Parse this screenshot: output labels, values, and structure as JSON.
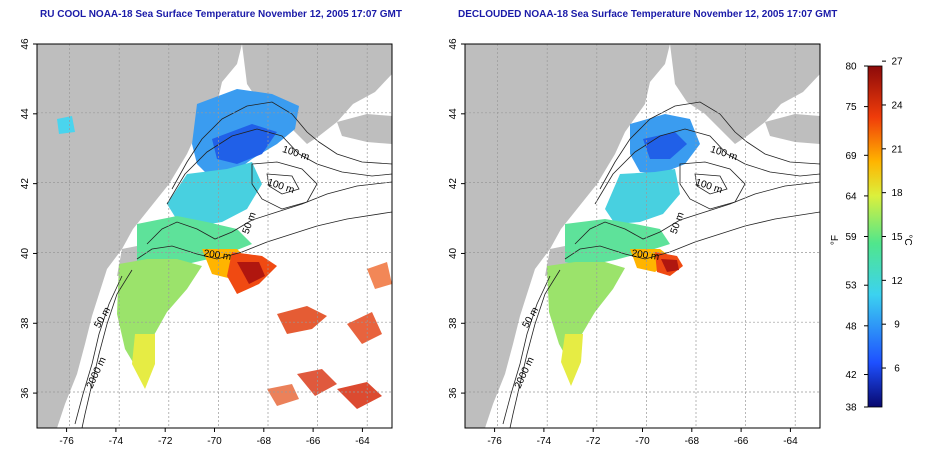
{
  "titles": {
    "left": "RU COOL NOAA-18 Sea Surface Temperature November 12, 2005 17:07 GMT",
    "right": "DECLOUDED NOAA-18 Sea Surface Temperature November 12, 2005 17:07 GMT"
  },
  "map_axes": {
    "lon_ticks": [
      "-76",
      "-74",
      "-72",
      "-70",
      "-68",
      "-66",
      "-64"
    ],
    "lat_ticks": [
      "36",
      "38",
      "40",
      "42",
      "44",
      "46"
    ],
    "lon_range": [
      -77.2,
      -62.8
    ],
    "lat_range": [
      35.0,
      46.0
    ],
    "grid": "dotted"
  },
  "contour_labels": [
    "100 m",
    "100 m",
    "50 m",
    "200 m",
    "50 m",
    "2000 m"
  ],
  "colorbar": {
    "fahrenheit_label": "°F",
    "celsius_label": "°C",
    "fahrenheit_ticks": [
      "38",
      "42",
      "48",
      "53",
      "59",
      "64",
      "69",
      "75",
      "80"
    ],
    "celsius_ticks": [
      "6",
      "9",
      "12",
      "15",
      "18",
      "21",
      "24",
      "27"
    ],
    "colors": [
      "#08086e",
      "#1e50ff",
      "#3cd2f0",
      "#50e68c",
      "#dcf03c",
      "#ffb400",
      "#f03c0a",
      "#8c0a0a"
    ]
  },
  "colors": {
    "land": "#bebebe",
    "ocean": "#ffffff",
    "title": "#1a1aa8"
  }
}
